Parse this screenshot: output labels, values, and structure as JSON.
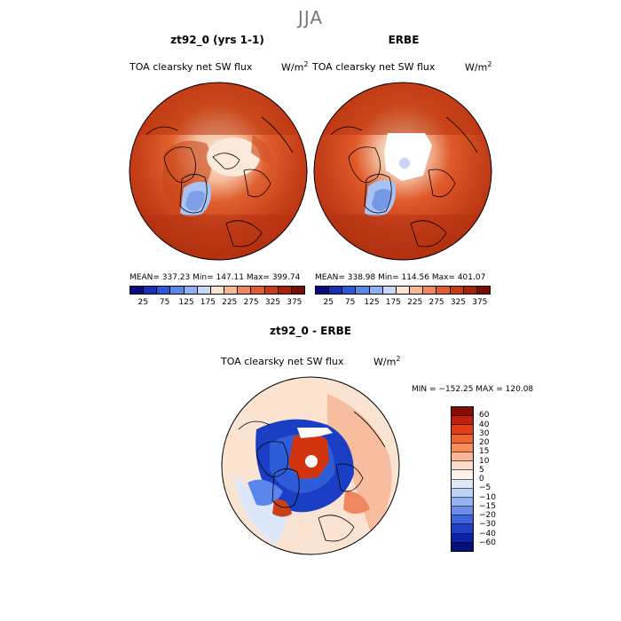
{
  "season": "JJA",
  "panels": {
    "model": {
      "title": "zt92_0 (yrs 1-1)",
      "field": "TOA clearsky net SW flux",
      "units": "W/m",
      "units_sup": "2",
      "stats": "MEAN= 337.23   Min= 147.11   Max= 399.74"
    },
    "obs": {
      "title": "ERBE",
      "field": "TOA clearsky net SW flux",
      "units": "W/m",
      "units_sup": "2",
      "stats": "MEAN= 338.98   Min= 114.56   Max= 401.07"
    },
    "diff": {
      "title": "zt92_0 - ERBE",
      "field": "TOA clearsky net SW flux",
      "units": "W/m",
      "units_sup": "2",
      "minmax": "MIN = −152.25  MAX = 120.08"
    }
  },
  "colorbar_abs": {
    "colors": [
      "#0a0a80",
      "#1a2fb8",
      "#2f56d8",
      "#5a86ea",
      "#8fb0f2",
      "#c8d8f8",
      "#fbe3d2",
      "#f7b898",
      "#f08660",
      "#e05a32",
      "#c83a14",
      "#a82208",
      "#7a0c04"
    ],
    "tick_labels": [
      "25",
      "75",
      "125",
      "175",
      "225",
      "275",
      "325",
      "375"
    ]
  },
  "colorbar_diff": {
    "colors": [
      "#8a0a06",
      "#c21e0c",
      "#e23c14",
      "#f2642e",
      "#f78d5c",
      "#f9b795",
      "#fbdccb",
      "#fdf3ea",
      "#dfe8fa",
      "#bcd1f6",
      "#92b2f0",
      "#6a8ee8",
      "#3f63dc",
      "#1f3fc8",
      "#0d22a6",
      "#03107c"
    ],
    "tick_labels": [
      "60",
      "40",
      "30",
      "20",
      "15",
      "10",
      "5",
      "0",
      "−5",
      "−10",
      "−15",
      "−20",
      "−30",
      "−40",
      "−60"
    ]
  }
}
